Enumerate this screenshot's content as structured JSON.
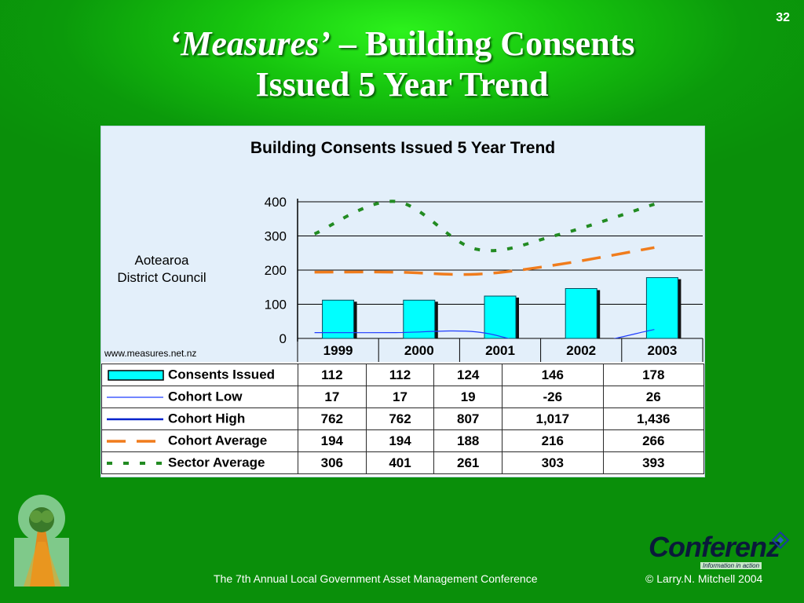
{
  "page_number": "32",
  "title": {
    "italic": "‘Measures’",
    "rest_line1": " – Building Consents",
    "line2": "Issued 5 Year Trend"
  },
  "chart_caption": {
    "line1": "Aotearoa",
    "line2": "District Council"
  },
  "source_url": "www.measures.net.nz",
  "footer": {
    "conference": "The 7th Annual Local Government Asset Management Conference",
    "copyright": "© Larry.N. Mitchell 2004"
  },
  "logo": {
    "name": "Conferenz",
    "tagline": "Information in action"
  },
  "colors": {
    "bar_fill": "#00ffff",
    "cohort_low": "#1e3cff",
    "cohort_high": "#0022cc",
    "cohort_average": "#f07c1c",
    "sector_average": "#228b22",
    "plot_background": "#e3effa"
  },
  "chart_data": {
    "type": "bar",
    "title": "Building Consents Issued  5 Year Trend",
    "categories": [
      "1999",
      "2000",
      "2001",
      "2002",
      "2003"
    ],
    "ylim": [
      0,
      400
    ],
    "yticks": [
      0,
      100,
      200,
      300,
      400
    ],
    "grid": true,
    "series": [
      {
        "name": "Consents Issued",
        "kind": "bar",
        "values": [
          112,
          112,
          124,
          146,
          178
        ],
        "display": [
          "112",
          "112",
          "124",
          "146",
          "178"
        ]
      },
      {
        "name": "Cohort Low",
        "kind": "line-thin",
        "values": [
          17,
          17,
          19,
          -26,
          26
        ],
        "display": [
          "17",
          "17",
          "19",
          "-26",
          "26"
        ]
      },
      {
        "name": "Cohort High",
        "kind": "line-thick",
        "values": [
          762,
          762,
          807,
          1017,
          1436
        ],
        "display": [
          "762",
          "762",
          "807",
          "1,017",
          "1,436"
        ]
      },
      {
        "name": "Cohort Average",
        "kind": "line-dashed",
        "values": [
          194,
          194,
          188,
          216,
          266
        ],
        "display": [
          "194",
          "194",
          "188",
          "216",
          "266"
        ]
      },
      {
        "name": "Sector Average",
        "kind": "line-dotted",
        "values": [
          306,
          401,
          261,
          303,
          393
        ],
        "display": [
          "306",
          "401",
          "261",
          "303",
          "393"
        ]
      }
    ]
  }
}
